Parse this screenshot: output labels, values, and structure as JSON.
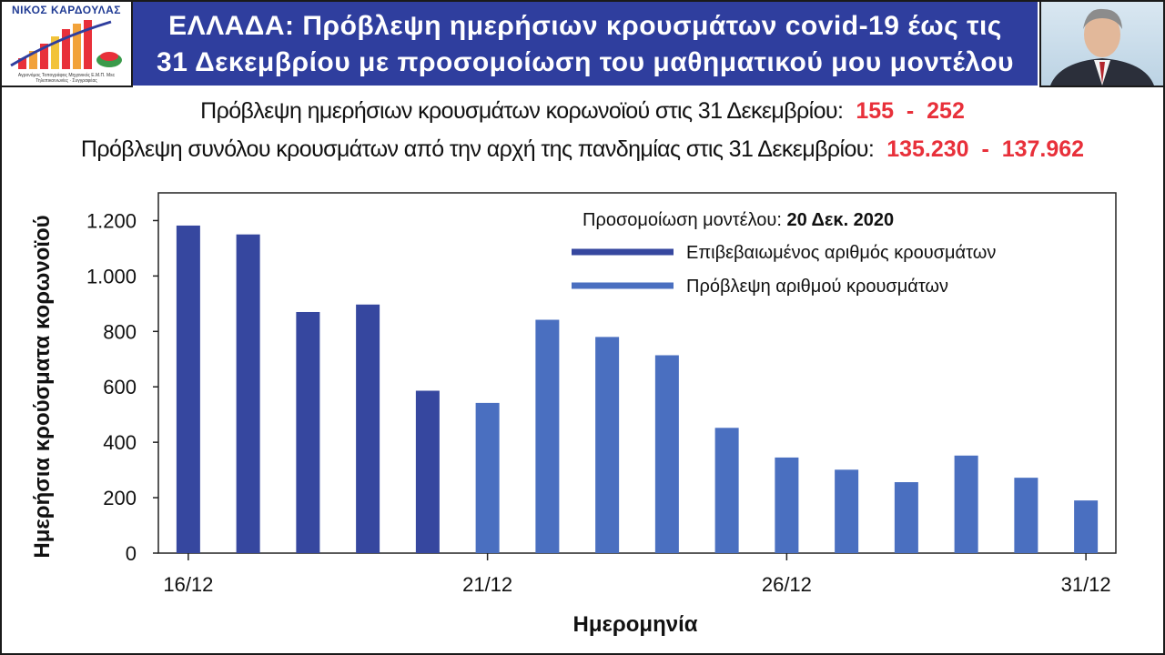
{
  "header": {
    "logo_name": "ΝΙΚΟΣ ΚΑΡΔΟΥΛΑΣ",
    "logo_sub": "Αγρονόμος Τοπογράφος Μηχανικός Ε.Μ.Π. Msc Τηλεπικοινωνίες · Συγγραφέας",
    "logo_icon": "bar-growth-logo-icon",
    "photo_icon": "author-portrait-icon",
    "title_line1": "ΕΛΛΑΔΑ: Πρόβλεψη ημερήσιων κρουσμάτων covid-19 έως τις",
    "title_line2": "31 Δεκεμβρίου με προσομοίωση του μαθηματικού μου μοντέλου"
  },
  "summary": {
    "daily_label": "Πρόβλεψη ημερήσιων κρουσμάτων κορωνοϊού στις 31 Δεκεμβρίου:",
    "daily_value": "155  -  252",
    "total_label": "Πρόβλεψη συνόλου κρουσμάτων από την αρχή της πανδημίας στις 31 Δεκεμβρίου:",
    "total_value": "135.230  -  137.962"
  },
  "colors": {
    "banner": "#2f3e9e",
    "confirmed": "#36479f",
    "forecast": "#4a6fc0",
    "highlight": "#e8303a"
  },
  "chart_data": {
    "type": "bar",
    "annotation_prefix": "Προσομοίωση μοντέλου: ",
    "annotation_date": "20 Δεκ. 2020",
    "xlabel": "Ημερομηνία",
    "ylabel": "Ημερήσια κρούσματα κορωνοϊού",
    "ylim": [
      0,
      1300
    ],
    "yticks": [
      0,
      200,
      400,
      600,
      800,
      1000,
      1200
    ],
    "ytick_labels": [
      "0",
      "200",
      "400",
      "600",
      "800",
      "1.000",
      "1.200"
    ],
    "categories": [
      "16/12",
      "17/12",
      "18/12",
      "19/12",
      "20/12",
      "21/12",
      "22/12",
      "23/12",
      "24/12",
      "25/12",
      "26/12",
      "27/12",
      "28/12",
      "29/12",
      "30/12",
      "31/12"
    ],
    "xtick_labels": [
      {
        "index": 0,
        "label": "16/12"
      },
      {
        "index": 5,
        "label": "21/12"
      },
      {
        "index": 10,
        "label": "26/12"
      },
      {
        "index": 15,
        "label": "31/12"
      }
    ],
    "legend_position": "top-right",
    "series": [
      {
        "name": "Επιβεβαιωμένος αριθμός κρουσμάτων",
        "color": "#36479f",
        "values": [
          1182,
          1150,
          870,
          897,
          586,
          null,
          null,
          null,
          null,
          null,
          null,
          null,
          null,
          null,
          null,
          null
        ]
      },
      {
        "name": "Πρόβλεψη αριθμού κρουσμάτων",
        "color": "#4a6fc0",
        "values": [
          null,
          null,
          null,
          null,
          null,
          542,
          842,
          780,
          714,
          452,
          345,
          301,
          256,
          352,
          272,
          190
        ]
      }
    ]
  }
}
